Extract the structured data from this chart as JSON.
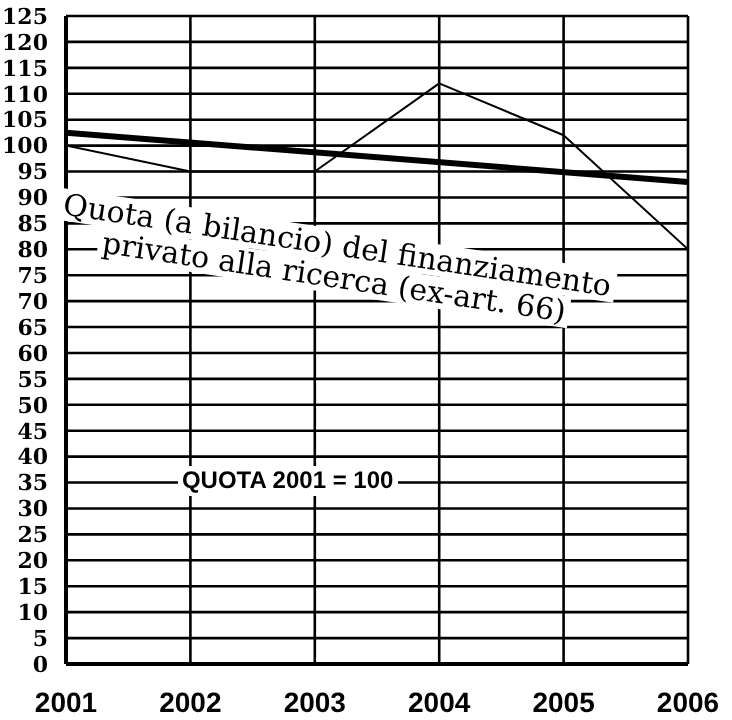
{
  "chart_data": {
    "type": "line",
    "x": [
      2001,
      2002,
      2003,
      2004,
      2005,
      2006
    ],
    "series": [
      {
        "color": "#000000",
        "values": [
          100,
          95,
          95,
          112,
          102,
          80
        ]
      },
      {
        "type": "line",
        "color": "#000000",
        "x": [
          2001,
          2006
        ],
        "values": [
          102.5,
          93
        ]
      }
    ],
    "xlim": [
      2001,
      2006
    ],
    "xticks": [
      2001,
      2002,
      2003,
      2004,
      2005,
      2006
    ],
    "ylim": [
      0,
      125
    ],
    "yticks": [
      0,
      5,
      10,
      15,
      20,
      25,
      30,
      35,
      40,
      45,
      50,
      55,
      60,
      65,
      70,
      75,
      80,
      85,
      90,
      95,
      100,
      105,
      110,
      115,
      120,
      125
    ],
    "grid": true,
    "marker": "none",
    "line_style": "solid",
    "annotations": [
      "Quota (a bilancio) del finanziamento privato alla ricerca (ex-art. 66)",
      "QUOTA 2001 = 100"
    ]
  }
}
